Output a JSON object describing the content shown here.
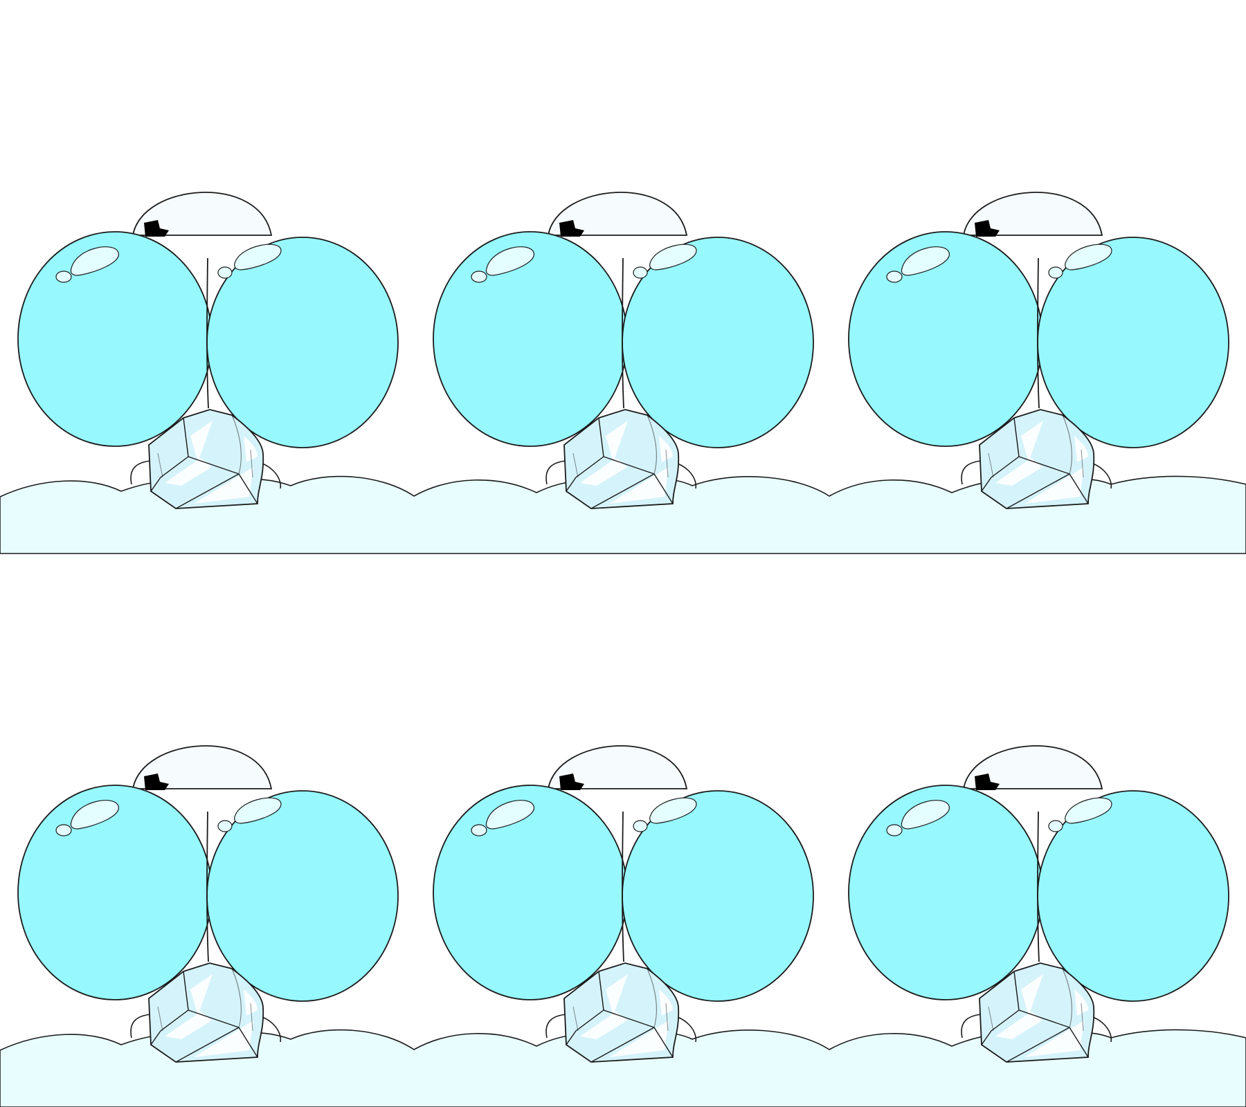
{
  "scene": {
    "rows": 2,
    "columns": 3,
    "colors": {
      "background": "#ffffff",
      "snow": "#e8fdfd",
      "balloon": "#97f8fd",
      "balloon_highlight": "#e4fdff",
      "head": "#f6fcfe",
      "ice": "#d5f3fb",
      "ice_shine": "#ffffff",
      "hair": "#000000",
      "outline": "#1a1a1a"
    }
  }
}
